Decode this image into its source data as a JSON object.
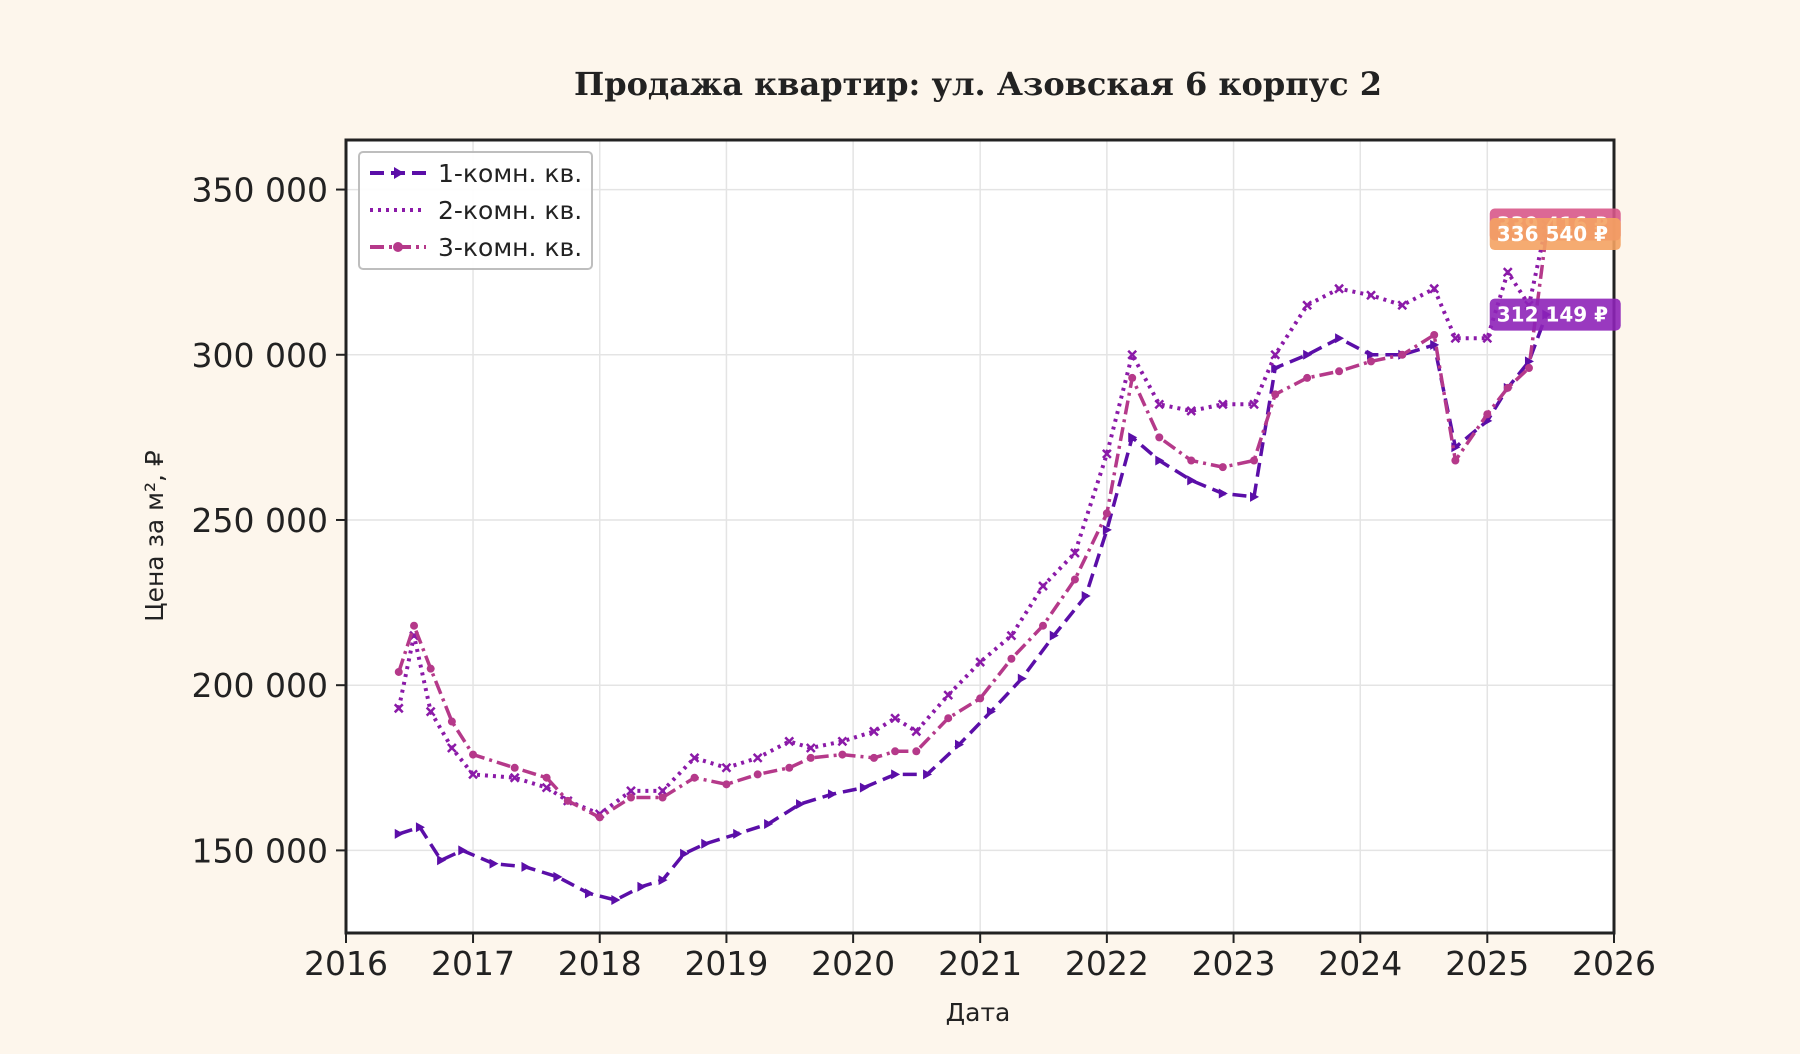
{
  "chart_data": {
    "type": "line",
    "title": "Продажа квартир: ул. Азовская 6 корпус 2",
    "xlabel": "Дата",
    "ylabel": "Цена за м², ₽",
    "xlim": [
      "2016-01-01",
      "2026-01-01"
    ],
    "ylim": [
      125000,
      365000
    ],
    "x_ticks": [
      "2016",
      "2017",
      "2018",
      "2019",
      "2020",
      "2021",
      "2022",
      "2023",
      "2024",
      "2025",
      "2026"
    ],
    "y_ticks": [
      150000,
      200000,
      250000,
      300000,
      350000
    ],
    "y_tick_labels": [
      "150 000",
      "200 000",
      "250 000",
      "300 000",
      "350 000"
    ],
    "grid": true,
    "legend_position": "top-left",
    "series": [
      {
        "name": "1-комн. кв.",
        "color": "#5b0ea8",
        "line_style": "dashed",
        "marker": "triangle-right",
        "points": [
          [
            "2016-06-01",
            155000
          ],
          [
            "2016-08-01",
            157000
          ],
          [
            "2016-10-01",
            147000
          ],
          [
            "2016-12-01",
            150000
          ],
          [
            "2017-03-01",
            146000
          ],
          [
            "2017-06-01",
            145000
          ],
          [
            "2017-09-01",
            142000
          ],
          [
            "2017-12-01",
            137000
          ],
          [
            "2018-02-15",
            135000
          ],
          [
            "2018-05-01",
            139000
          ],
          [
            "2018-07-01",
            141000
          ],
          [
            "2018-09-01",
            149000
          ],
          [
            "2018-11-01",
            152000
          ],
          [
            "2019-02-01",
            155000
          ],
          [
            "2019-05-01",
            158000
          ],
          [
            "2019-08-01",
            164000
          ],
          [
            "2019-11-01",
            167000
          ],
          [
            "2020-02-01",
            169000
          ],
          [
            "2020-05-01",
            173000
          ],
          [
            "2020-08-01",
            173000
          ],
          [
            "2020-11-01",
            182000
          ],
          [
            "2021-02-01",
            192000
          ],
          [
            "2021-05-01",
            202000
          ],
          [
            "2021-08-01",
            215000
          ],
          [
            "2021-11-01",
            227000
          ],
          [
            "2022-01-01",
            247000
          ],
          [
            "2022-03-15",
            275000
          ],
          [
            "2022-06-01",
            268000
          ],
          [
            "2022-09-01",
            262000
          ],
          [
            "2022-12-01",
            258000
          ],
          [
            "2023-03-01",
            257000
          ],
          [
            "2023-05-01",
            296000
          ],
          [
            "2023-08-01",
            300000
          ],
          [
            "2023-11-01",
            305000
          ],
          [
            "2024-02-01",
            300000
          ],
          [
            "2024-05-01",
            300000
          ],
          [
            "2024-08-01",
            303000
          ],
          [
            "2024-10-01",
            272000
          ],
          [
            "2025-01-01",
            280000
          ],
          [
            "2025-03-01",
            290000
          ],
          [
            "2025-05-01",
            298000
          ],
          [
            "2025-06-20",
            312149
          ]
        ]
      },
      {
        "name": "2-комн. кв.",
        "color": "#8b1aa8",
        "line_style": "dotted",
        "marker": "x",
        "points": [
          [
            "2016-06-01",
            193000
          ],
          [
            "2016-07-15",
            215000
          ],
          [
            "2016-09-01",
            192000
          ],
          [
            "2016-11-01",
            181000
          ],
          [
            "2017-01-01",
            173000
          ],
          [
            "2017-05-01",
            172000
          ],
          [
            "2017-08-01",
            169000
          ],
          [
            "2017-10-01",
            165000
          ],
          [
            "2018-01-01",
            161000
          ],
          [
            "2018-04-01",
            168000
          ],
          [
            "2018-07-01",
            168000
          ],
          [
            "2018-10-01",
            178000
          ],
          [
            "2019-01-01",
            175000
          ],
          [
            "2019-04-01",
            178000
          ],
          [
            "2019-07-01",
            183000
          ],
          [
            "2019-09-01",
            181000
          ],
          [
            "2019-12-01",
            183000
          ],
          [
            "2020-03-01",
            186000
          ],
          [
            "2020-05-01",
            190000
          ],
          [
            "2020-07-01",
            186000
          ],
          [
            "2020-10-01",
            197000
          ],
          [
            "2021-01-01",
            207000
          ],
          [
            "2021-04-01",
            215000
          ],
          [
            "2021-07-01",
            230000
          ],
          [
            "2021-10-01",
            240000
          ],
          [
            "2022-01-01",
            270000
          ],
          [
            "2022-03-15",
            300000
          ],
          [
            "2022-06-01",
            285000
          ],
          [
            "2022-09-01",
            283000
          ],
          [
            "2022-12-01",
            285000
          ],
          [
            "2023-03-01",
            285000
          ],
          [
            "2023-05-01",
            300000
          ],
          [
            "2023-08-01",
            315000
          ],
          [
            "2023-11-01",
            320000
          ],
          [
            "2024-02-01",
            318000
          ],
          [
            "2024-05-01",
            315000
          ],
          [
            "2024-08-01",
            320000
          ],
          [
            "2024-10-01",
            305000
          ],
          [
            "2025-01-01",
            305000
          ],
          [
            "2025-03-01",
            325000
          ],
          [
            "2025-05-01",
            315000
          ],
          [
            "2025-06-20",
            339416
          ]
        ]
      },
      {
        "name": "3-комн. кв.",
        "color": "#b5398a",
        "line_style": "dash-dot",
        "marker": "circle",
        "points": [
          [
            "2016-06-01",
            204000
          ],
          [
            "2016-07-15",
            218000
          ],
          [
            "2016-09-01",
            205000
          ],
          [
            "2016-11-01",
            189000
          ],
          [
            "2017-01-01",
            179000
          ],
          [
            "2017-05-01",
            175000
          ],
          [
            "2017-08-01",
            172000
          ],
          [
            "2017-10-01",
            165000
          ],
          [
            "2018-01-01",
            160000
          ],
          [
            "2018-04-01",
            166000
          ],
          [
            "2018-07-01",
            166000
          ],
          [
            "2018-10-01",
            172000
          ],
          [
            "2019-01-01",
            170000
          ],
          [
            "2019-04-01",
            173000
          ],
          [
            "2019-07-01",
            175000
          ],
          [
            "2019-09-01",
            178000
          ],
          [
            "2019-12-01",
            179000
          ],
          [
            "2020-03-01",
            178000
          ],
          [
            "2020-05-01",
            180000
          ],
          [
            "2020-07-01",
            180000
          ],
          [
            "2020-10-01",
            190000
          ],
          [
            "2021-01-01",
            196000
          ],
          [
            "2021-04-01",
            208000
          ],
          [
            "2021-07-01",
            218000
          ],
          [
            "2021-10-01",
            232000
          ],
          [
            "2022-01-01",
            252000
          ],
          [
            "2022-03-15",
            293000
          ],
          [
            "2022-06-01",
            275000
          ],
          [
            "2022-09-01",
            268000
          ],
          [
            "2022-12-01",
            266000
          ],
          [
            "2023-03-01",
            268000
          ],
          [
            "2023-05-01",
            288000
          ],
          [
            "2023-08-01",
            293000
          ],
          [
            "2023-11-01",
            295000
          ],
          [
            "2024-02-01",
            298000
          ],
          [
            "2024-05-01",
            300000
          ],
          [
            "2024-08-01",
            306000
          ],
          [
            "2024-10-01",
            268000
          ],
          [
            "2025-01-01",
            282000
          ],
          [
            "2025-03-01",
            290000
          ],
          [
            "2025-05-01",
            296000
          ],
          [
            "2025-06-20",
            336540
          ]
        ]
      }
    ],
    "end_labels": [
      {
        "series": "2-комн. кв.",
        "value": 339416,
        "text": "339 416 ₽",
        "color": "#d8588a"
      },
      {
        "series": "3-комн. кв.",
        "value": 336540,
        "text": "336 540 ₽",
        "color": "#f4a262"
      },
      {
        "series": "1-комн. кв.",
        "value": 312149,
        "text": "312 149 ₽",
        "color": "#8e24b8"
      }
    ]
  }
}
